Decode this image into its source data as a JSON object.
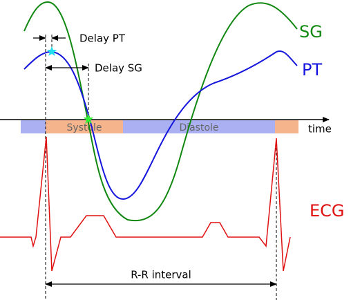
{
  "labels": {
    "delay_pt": "Delay PT",
    "delay_sg": "Delay SG",
    "sg": "SG",
    "pt": "PT",
    "time": "time",
    "systole": "Systole",
    "diastole": "Diastole",
    "ecg": "ECG",
    "rr_interval": "R-R interval"
  }
}
